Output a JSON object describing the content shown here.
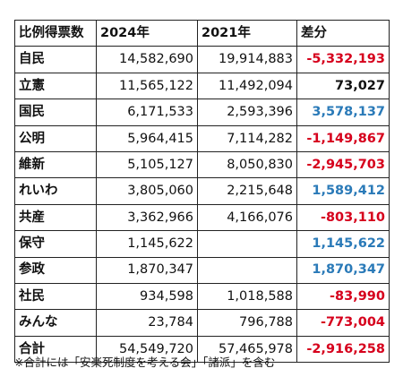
{
  "table": {
    "headers": [
      "比例得票数",
      "2024年",
      "2021年",
      "差分"
    ],
    "rows": [
      {
        "party": "自民",
        "y2024": "14,582,690",
        "y2021": "19,914,883",
        "diff": "-5,332,193",
        "tone": "neg"
      },
      {
        "party": "立憲",
        "y2024": "11,565,122",
        "y2021": "11,492,094",
        "diff": "73,027",
        "tone": "neutral"
      },
      {
        "party": "国民",
        "y2024": "6,171,533",
        "y2021": "2,593,396",
        "diff": "3,578,137",
        "tone": "pos"
      },
      {
        "party": "公明",
        "y2024": "5,964,415",
        "y2021": "7,114,282",
        "diff": "-1,149,867",
        "tone": "neg"
      },
      {
        "party": "維新",
        "y2024": "5,105,127",
        "y2021": "8,050,830",
        "diff": "-2,945,703",
        "tone": "neg"
      },
      {
        "party": "れいわ",
        "y2024": "3,805,060",
        "y2021": "2,215,648",
        "diff": "1,589,412",
        "tone": "pos"
      },
      {
        "party": "共産",
        "y2024": "3,362,966",
        "y2021": "4,166,076",
        "diff": "-803,110",
        "tone": "neg"
      },
      {
        "party": "保守",
        "y2024": "1,145,622",
        "y2021": "",
        "diff": "1,145,622",
        "tone": "pos"
      },
      {
        "party": "参政",
        "y2024": "1,870,347",
        "y2021": "",
        "diff": "1,870,347",
        "tone": "pos"
      },
      {
        "party": "社民",
        "y2024": "934,598",
        "y2021": "1,018,588",
        "diff": "-83,990",
        "tone": "neg"
      },
      {
        "party": "みんな",
        "y2024": "23,784",
        "y2021": "796,788",
        "diff": "-773,004",
        "tone": "neg"
      },
      {
        "party": "合計",
        "y2024": "54,549,720",
        "y2021": "57,465,978",
        "diff": "-2,916,258",
        "tone": "neg"
      }
    ]
  },
  "colors": {
    "negative": "#d6001c",
    "positive": "#2a7ab8",
    "neutral": "#111111"
  },
  "footnote": "※合計には「安楽死制度を考える会」「諸派」を含む"
}
